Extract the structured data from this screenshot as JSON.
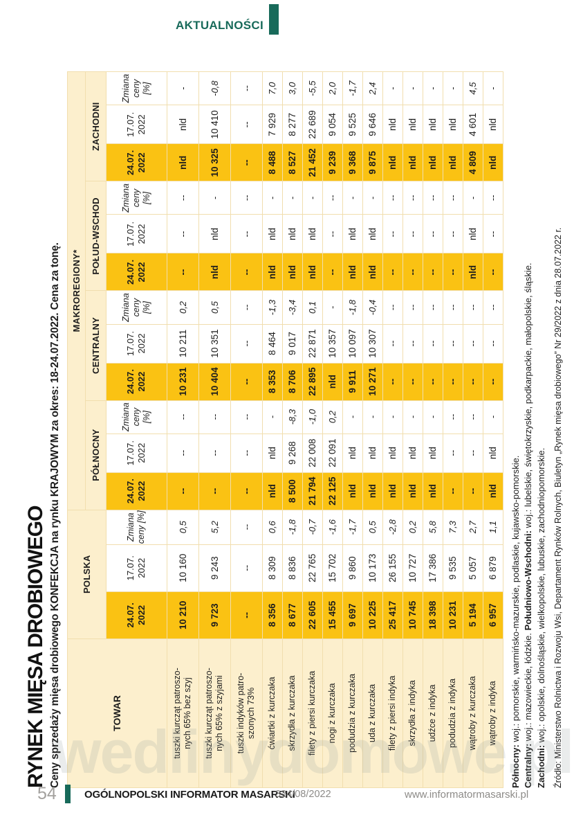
{
  "page": {
    "section_label": "AKTUALNOŚCI",
    "watermark": "wedlinydomowe.pl",
    "footer": {
      "page_number": "54",
      "magazine": "OGÓLNOPOLSKI INFORMATOR MASARSKI",
      "issue": "324/08/2022",
      "website": "www.informatormasarski.pl"
    }
  },
  "article": {
    "title": "RYNEK MIĘSA DROBIOWEGO",
    "subtitle": "Ceny sprzedaży mięsa drobiowego KONFEKCJA na rynku KRAJOWYM za okres: 18-24.07.2022. Cena za tonę."
  },
  "table": {
    "towar_header": "TOWAR",
    "polska_header": "POLSKA",
    "makroregiony_header": "MAKROREGIONY*",
    "region_headers": [
      "PÓŁNOCNY",
      "CENTRALNY",
      "POŁUD-WSCHOD",
      "ZACHODNI"
    ],
    "date_headers": {
      "current": "24.07. 2022",
      "previous": "17.07. 2022",
      "change": "Zmiana ceny [%]"
    },
    "rows": [
      {
        "name": "tuszki kurcząt patroszo-\nnych 65% bez szyj",
        "values": [
          "10 210",
          "10 160",
          "0,5",
          "--",
          "--",
          "--",
          "10 231",
          "10 211",
          "0,2",
          "--",
          "--",
          "--",
          "nld",
          "nld",
          "-"
        ]
      },
      {
        "name": "tuszki kurcząt patroszo-\nnych 65% z szyjami",
        "values": [
          "9 723",
          "9 243",
          "5,2",
          "--",
          "--",
          "--",
          "10 404",
          "10 351",
          "0,5",
          "nld",
          "nld",
          "-",
          "10 325",
          "10 410",
          "-0,8"
        ]
      },
      {
        "name": "tuszki indyków patro-\nszonych 73%",
        "values": [
          "--",
          "--",
          "--",
          "--",
          "--",
          "--",
          "--",
          "--",
          "--",
          "--",
          "--",
          "--",
          "--",
          "--",
          "--"
        ]
      },
      {
        "name": "ćwiartki z kurczaka",
        "values": [
          "8 356",
          "8 309",
          "0,6",
          "nld",
          "nld",
          "-",
          "8 353",
          "8 464",
          "-1,3",
          "nld",
          "nld",
          "-",
          "8 488",
          "7 929",
          "7,0"
        ]
      },
      {
        "name": "skrzydła z kurczaka",
        "values": [
          "8 677",
          "8 836",
          "-1,8",
          "8 500",
          "9 268",
          "-8,3",
          "8 706",
          "9 017",
          "-3,4",
          "nld",
          "nld",
          "-",
          "8 527",
          "8 277",
          "3,0"
        ]
      },
      {
        "name": "filety z piersi kurczaka",
        "values": [
          "22 605",
          "22 765",
          "-0,7",
          "21 794",
          "22 008",
          "-1,0",
          "22 895",
          "22 871",
          "0,1",
          "nld",
          "nld",
          "-",
          "21 452",
          "22 689",
          "-5,5"
        ]
      },
      {
        "name": "nogi z kurczaka",
        "values": [
          "15 455",
          "15 702",
          "-1,6",
          "22 125",
          "22 091",
          "0,2",
          "nld",
          "10 357",
          "-",
          "--",
          "--",
          "--",
          "9 239",
          "9 054",
          "2,0"
        ]
      },
      {
        "name": "podudzia z kurczaka",
        "values": [
          "9 697",
          "9 860",
          "-1,7",
          "nld",
          "nld",
          "-",
          "9 911",
          "10 097",
          "-1,8",
          "nld",
          "nld",
          "-",
          "9 368",
          "9 525",
          "-1,7"
        ]
      },
      {
        "name": "uda z kurczaka",
        "values": [
          "10 225",
          "10 173",
          "0,5",
          "nld",
          "nld",
          "-",
          "10 271",
          "10 307",
          "-0,4",
          "nld",
          "nld",
          "-",
          "9 875",
          "9 646",
          "2,4"
        ]
      },
      {
        "name": "filety z piersi indyka",
        "values": [
          "25 417",
          "26 155",
          "-2,8",
          "nld",
          "nld",
          "-",
          "--",
          "--",
          "--",
          "--",
          "--",
          "--",
          "nld",
          "nld",
          "-"
        ]
      },
      {
        "name": "skrzydła z indyka",
        "values": [
          "10 745",
          "10 727",
          "0,2",
          "nld",
          "nld",
          "-",
          "--",
          "--",
          "--",
          "--",
          "--",
          "--",
          "nld",
          "nld",
          "-"
        ]
      },
      {
        "name": "udźce z indyka",
        "values": [
          "18 398",
          "17 386",
          "5,8",
          "nld",
          "nld",
          "-",
          "--",
          "--",
          "--",
          "--",
          "--",
          "--",
          "nld",
          "nld",
          "-"
        ]
      },
      {
        "name": "podudzia z indyka",
        "values": [
          "10 231",
          "9 535",
          "7,3",
          "--",
          "--",
          "--",
          "--",
          "--",
          "--",
          "--",
          "--",
          "--",
          "nld",
          "nld",
          "-"
        ]
      },
      {
        "name": "wątroby z kurczaka",
        "values": [
          "5 194",
          "5 057",
          "2,7",
          "--",
          "--",
          "--",
          "--",
          "--",
          "--",
          "nld",
          "nld",
          "-",
          "4 809",
          "4 601",
          "4,5"
        ]
      },
      {
        "name": "wątroby z indyka",
        "values": [
          "6 957",
          "6 879",
          "1,1",
          "nld",
          "nld",
          "-",
          "--",
          "--",
          "--",
          "--",
          "--",
          "--",
          "nld",
          "nld",
          "-"
        ]
      }
    ]
  },
  "footnotes": {
    "line1_label": "Północny:",
    "line1_text": " woj.: pomorskie, warmińsko-mazurskie, podlaskie, kujawsko-pomorskie.",
    "line2_label": "Centralny:",
    "line2_text": " woj.: mazowieckie, łódzkie. ",
    "line2_label2": "Południowo-Wschodni:",
    "line2_text2": " woj.: lubelskie, świętokrzyskie, podkarpackie, małopolskie, śląskie.",
    "line3_label": "Zachodni:",
    "line3_text": " woj.: opolskie, dolnośląskie, wielkopolskie, lubuskie, zachodniopomorskie.",
    "source": "Źródło: Ministerstwo Rolnictwa i Rozwoju Wsi, Departament Rynków Rolnych, Biuletyn „Rynek mięsa drobiowego” Nr 29/2022 z dnia 28.07.2022 r."
  }
}
